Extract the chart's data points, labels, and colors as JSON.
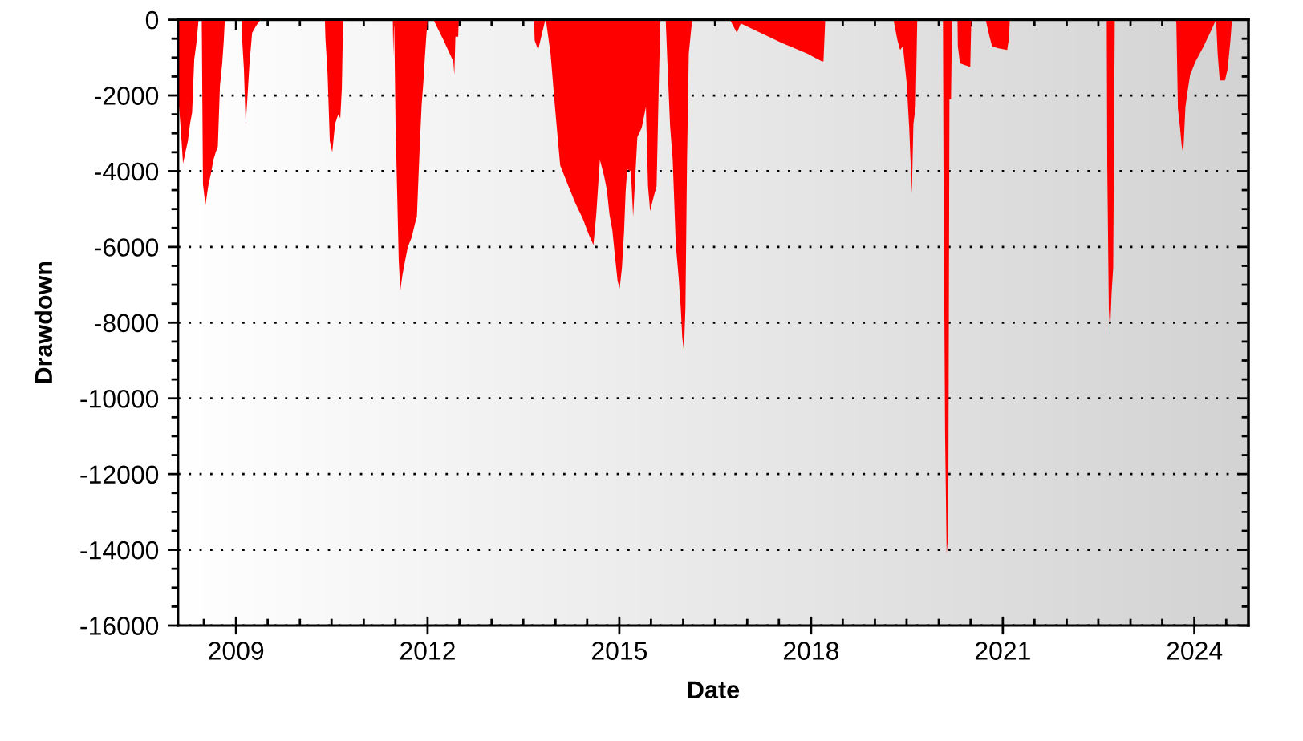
{
  "chart_data": {
    "type": "area",
    "xlabel": "Date",
    "ylabel": "Drawdown",
    "x": [
      "2008-02-07",
      "2008-02-21",
      "2008-03-04",
      "2008-03-20",
      "2008-04-01",
      "2008-04-13",
      "2008-04-25",
      "2008-05-07",
      "2008-05-20",
      "2008-06-01",
      "2008-06-19",
      "2008-06-26",
      "2008-07-10",
      "2008-07-26",
      "2008-08-11",
      "2008-08-25",
      "2008-09-07",
      "2008-09-19",
      "2008-10-01",
      "2008-10-14",
      "2008-10-23",
      "2008-10-29",
      "2009-02-01",
      "2009-02-04",
      "2009-02-15",
      "2009-02-25",
      "2009-03-06",
      "2009-03-19",
      "2009-04-03",
      "2009-04-27",
      "2009-05-22",
      "2010-05-24",
      "2010-05-27",
      "2010-06-08",
      "2010-06-21",
      "2010-07-05",
      "2010-07-21",
      "2010-08-08",
      "2010-08-20",
      "2010-08-29",
      "2010-09-05",
      "2011-06-16",
      "2011-06-19",
      "2011-06-24",
      "2011-07-02",
      "2011-07-11",
      "2011-07-20",
      "2011-07-29",
      "2011-08-10",
      "2011-08-26",
      "2011-09-10",
      "2011-10-02",
      "2011-10-20",
      "2011-11-01",
      "2011-11-10",
      "2011-11-19",
      "2011-11-28",
      "2011-12-08",
      "2011-12-17",
      "2011-12-26",
      "2012-01-01",
      "2012-02-03",
      "2012-04-02",
      "2012-05-27",
      "2012-06-02",
      "2012-06-08",
      "2012-06-24",
      "2012-06-27",
      "2013-09-01",
      "2013-09-04",
      "2013-09-24",
      "2013-10-17",
      "2013-11-04",
      "2013-11-07",
      "2013-12-04",
      "2013-12-29",
      "2014-01-28",
      "2014-03-12",
      "2014-04-25",
      "2014-06-06",
      "2014-07-13",
      "2014-08-06",
      "2014-08-22",
      "2014-09-12",
      "2014-10-07",
      "2014-10-22",
      "2014-11-06",
      "2014-11-22",
      "2014-12-06",
      "2014-12-22",
      "2015-01-03",
      "2015-01-16",
      "2015-01-28",
      "2015-02-06",
      "2015-02-15",
      "2015-03-08",
      "2015-03-21",
      "2015-04-02",
      "2015-04-14",
      "2015-05-09",
      "2015-06-02",
      "2015-06-14",
      "2015-06-26",
      "2015-07-15",
      "2015-08-02",
      "2015-08-15",
      "2015-08-24",
      "2015-09-23",
      "2015-10-03",
      "2015-10-18",
      "2015-11-02",
      "2015-11-20",
      "2015-12-06",
      "2015-12-18",
      "2015-12-27",
      "2016-01-05",
      "2016-01-14",
      "2016-01-23",
      "2016-02-02",
      "2016-02-17",
      "2016-02-24",
      "2016-09-24",
      "2016-11-03",
      "2016-11-25",
      "2017-07-12",
      "2017-12-12",
      "2018-03-04",
      "2018-03-13",
      "2018-03-23",
      "2019-04-18",
      "2019-04-21",
      "2019-05-10",
      "2019-05-25",
      "2019-06-10",
      "2019-07-01",
      "2019-07-16",
      "2019-07-26",
      "2019-07-31",
      "2019-08-09",
      "2019-08-22",
      "2019-08-31",
      "2020-01-25",
      "2020-01-28",
      "2020-02-06",
      "2020-02-15",
      "2020-02-24",
      "2020-03-02",
      "2020-03-11",
      "2020-03-17",
      "2020-04-17",
      "2020-04-19",
      "2020-05-01",
      "2020-06-29",
      "2020-07-05",
      "2020-09-25",
      "2020-10-17",
      "2020-11-01",
      "2020-12-02",
      "2021-01-26",
      "2021-02-05",
      "2021-02-10",
      "2022-08-18",
      "2022-08-21",
      "2022-08-30",
      "2022-09-06",
      "2022-09-15",
      "2022-09-24",
      "2022-10-03",
      "2023-09-17",
      "2023-09-20",
      "2023-09-29",
      "2023-10-11",
      "2023-10-20",
      "2023-10-29",
      "2023-11-11",
      "2023-11-23",
      "2023-12-08",
      "2024-01-08",
      "2024-02-23",
      "2024-04-09",
      "2024-05-04",
      "2024-05-13",
      "2024-05-25",
      "2024-06-24",
      "2024-07-09",
      "2024-07-25",
      "2024-08-03"
    ],
    "series": [
      {
        "color": "#ff0000",
        "values": [
          -2100,
          -2950,
          -3800,
          -3450,
          -3200,
          -2750,
          -2450,
          -1050,
          -600,
          0,
          0,
          -4350,
          -4900,
          -4400,
          -4050,
          -3700,
          -3500,
          -3350,
          -1750,
          -1150,
          -550,
          0,
          0,
          -450,
          -1300,
          -2750,
          -2150,
          -1150,
          -350,
          -150,
          0,
          0,
          -500,
          -1400,
          -3200,
          -3500,
          -2750,
          -2500,
          -2600,
          -1800,
          0,
          0,
          -950,
          0,
          -2800,
          -4550,
          -6350,
          -7150,
          -6750,
          -6350,
          -6000,
          -5750,
          -5400,
          -5200,
          -4150,
          -3150,
          -2250,
          -1650,
          -950,
          -350,
          0,
          0,
          -550,
          -1100,
          -1450,
          -450,
          -450,
          0,
          0,
          -550,
          -800,
          -350,
          0,
          0,
          -900,
          -2300,
          -3850,
          -4350,
          -4850,
          -5250,
          -5700,
          -5950,
          -5150,
          -3700,
          -4150,
          -4500,
          -5150,
          -5550,
          -6200,
          -6900,
          -7100,
          -6550,
          -5600,
          -4550,
          -3950,
          -4000,
          -5200,
          -4150,
          -3100,
          -2850,
          -2300,
          -4400,
          -5050,
          -4700,
          -4400,
          -1600,
          0,
          0,
          -1150,
          -2800,
          -3700,
          -5950,
          -6800,
          -7600,
          -8400,
          -8750,
          -7600,
          -3700,
          -900,
          -200,
          0,
          0,
          -350,
          -100,
          -600,
          -900,
          -1100,
          -1100,
          0,
          0,
          -100,
          -550,
          -800,
          -700,
          -1650,
          -2850,
          -4000,
          -4600,
          -2750,
          -2300,
          0,
          0,
          -3950,
          -10900,
          -14100,
          -13600,
          -2100,
          -2100,
          0,
          0,
          -700,
          -1150,
          -1250,
          0,
          0,
          -450,
          -700,
          -750,
          -800,
          -500,
          0,
          0,
          -3850,
          -7650,
          -8250,
          -7200,
          -6550,
          0,
          0,
          -100,
          -2350,
          -2850,
          -3300,
          -3550,
          -2300,
          -1900,
          -1450,
          -1100,
          -700,
          -250,
          0,
          -900,
          -1600,
          -1600,
          -1300,
          -550,
          0
        ]
      }
    ],
    "xlim": [
      "2008-02-05",
      "2024-11-05"
    ],
    "xticks": [
      {
        "value": "2008-07",
        "label": null
      },
      "2009",
      {
        "value": "2009-07",
        "label": null
      },
      {
        "value": "2010",
        "label": null
      },
      {
        "value": "2010-07",
        "label": null
      },
      {
        "value": "2011",
        "label": null
      },
      {
        "value": "2011-07",
        "label": null
      },
      "2012",
      {
        "value": "2012-07",
        "label": null
      },
      {
        "value": "2013",
        "label": null
      },
      {
        "value": "2013-07",
        "label": null
      },
      {
        "value": "2014",
        "label": null
      },
      {
        "value": "2014-07",
        "label": null
      },
      "2015",
      {
        "value": "2015-07",
        "label": null
      },
      {
        "value": "2016",
        "label": null
      },
      {
        "value": "2016-07",
        "label": null
      },
      {
        "value": "2017",
        "label": null
      },
      {
        "value": "2017-07",
        "label": null
      },
      "2018",
      {
        "value": "2018-07",
        "label": null
      },
      {
        "value": "2019",
        "label": null
      },
      {
        "value": "2019-07",
        "label": null
      },
      {
        "value": "2020",
        "label": null
      },
      {
        "value": "2020-07",
        "label": null
      },
      "2021",
      {
        "value": "2021-07",
        "label": null
      },
      {
        "value": "2022",
        "label": null
      },
      {
        "value": "2022-07",
        "label": null
      },
      {
        "value": "2023",
        "label": null
      },
      {
        "value": "2023-07",
        "label": null
      },
      "2024",
      {
        "value": "2024-07",
        "label": null
      }
    ],
    "ylim": [
      -16000,
      0
    ],
    "yticks": [
      0,
      {
        "value": -500,
        "label": null
      },
      {
        "value": -1000,
        "label": null
      },
      {
        "value": -1500,
        "label": null
      },
      -2000,
      {
        "value": -2500,
        "label": null
      },
      {
        "value": -3000,
        "label": null
      },
      {
        "value": -3500,
        "label": null
      },
      -4000,
      {
        "value": -4500,
        "label": null
      },
      {
        "value": -5000,
        "label": null
      },
      {
        "value": -5500,
        "label": null
      },
      -6000,
      {
        "value": -6500,
        "label": null
      },
      {
        "value": -7000,
        "label": null
      },
      {
        "value": -7500,
        "label": null
      },
      -8000,
      {
        "value": -8500,
        "label": null
      },
      {
        "value": -9000,
        "label": null
      },
      {
        "value": -9500,
        "label": null
      },
      -10000,
      {
        "value": -10500,
        "label": null
      },
      {
        "value": -11000,
        "label": null
      },
      {
        "value": -11500,
        "label": null
      },
      -12000,
      {
        "value": -12500,
        "label": null
      },
      {
        "value": -13000,
        "label": null
      },
      {
        "value": -13500,
        "label": null
      },
      -14000,
      {
        "value": -14500,
        "label": null
      },
      {
        "value": -15000,
        "label": null
      },
      {
        "value": -15500,
        "label": null
      },
      -16000
    ],
    "grid": "y"
  }
}
